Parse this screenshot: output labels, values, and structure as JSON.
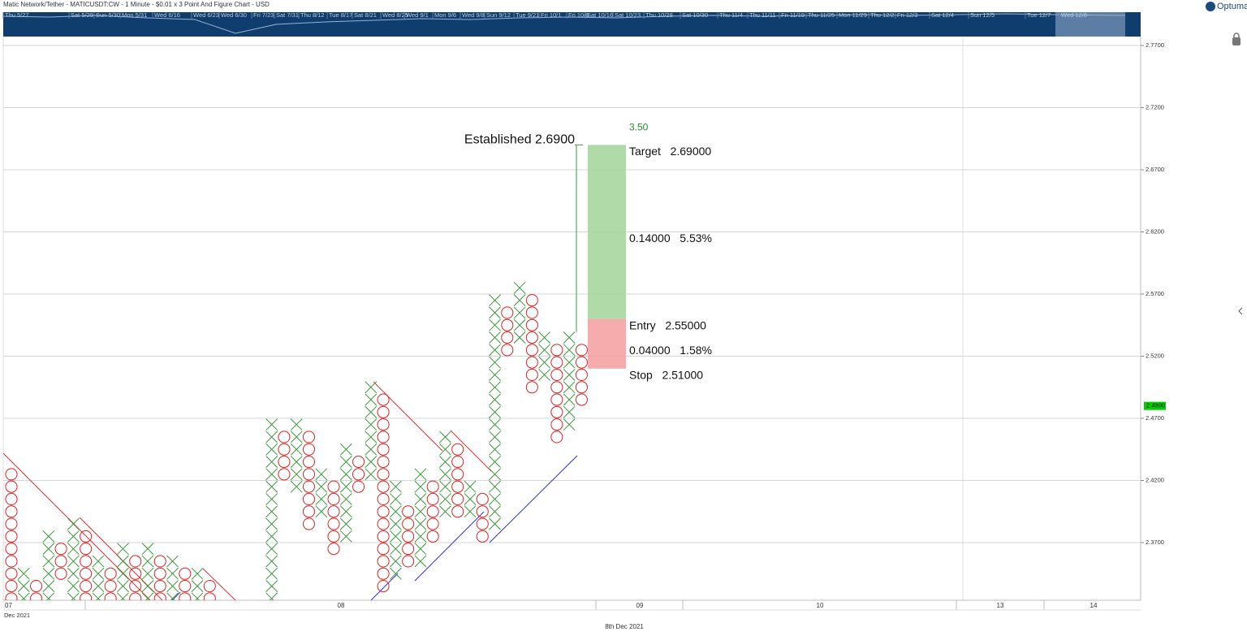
{
  "header": {
    "title": "Matic Network/Tether - MATICUSDT:CW - 1 Minute - $0.01 x 3 Point And Figure Chart - USD",
    "logo": "Optuma"
  },
  "navigator": {
    "labels": [
      "Thu 5/27",
      "Sat 5/29",
      "Sun 5/30",
      "Mon 5/31",
      "Wed 6/16",
      "Wed 6/23",
      "Wed 6/30",
      "Fri 7/23",
      "Sat 7/31",
      "Thu 8/12",
      "Tue 8/17",
      "Sat 8/21",
      "Wed 8/25",
      "Wed 9/1",
      "Mon 9/6",
      "Wed 9/8",
      "Sun 9/12",
      "Tue 9/21",
      "Fri 10/1",
      "Fri 10/8",
      "Sat 10/16",
      "Sat 10/23",
      "Thu 10/28",
      "Sat 10/30",
      "Thu 11/4",
      "Thu 11/11",
      "Fri 11/19",
      "Thu 11/25",
      "Mon 11/29",
      "Thu 12/2",
      "Fri 12/3",
      "Sat 12/4",
      "Sun 12/5",
      "Tue 12/7",
      "Wed 12/8"
    ]
  },
  "chart_data": {
    "type": "point-and-figure",
    "box_size": 0.01,
    "colors": {
      "X": "#3a9a3a",
      "O": "#e02424"
    },
    "x": [
      0,
      1,
      2,
      3,
      4,
      5,
      6,
      7,
      8,
      9,
      10,
      11,
      12,
      13,
      14,
      15,
      16,
      21,
      22,
      23,
      24,
      25,
      26,
      27,
      28,
      29,
      30,
      31,
      32,
      33,
      34,
      35,
      36,
      37,
      38,
      39,
      40,
      41,
      42,
      43,
      44,
      45,
      46
    ],
    "columns": [
      {
        "kind": "O",
        "high": 2.42,
        "low": 2.32
      },
      {
        "kind": "X",
        "high": 2.34,
        "low": 2.32
      },
      {
        "kind": "O",
        "high": 2.33,
        "low": 2.32
      },
      {
        "kind": "X",
        "high": 2.37,
        "low": 2.32
      },
      {
        "kind": "O",
        "high": 2.36,
        "low": 2.34
      },
      {
        "kind": "X",
        "high": 2.38,
        "low": 2.32
      },
      {
        "kind": "O",
        "high": 2.37,
        "low": 2.32
      },
      {
        "kind": "X",
        "high": 2.35,
        "low": 2.32
      },
      {
        "kind": "O",
        "high": 2.34,
        "low": 2.32
      },
      {
        "kind": "X",
        "high": 2.36,
        "low": 2.32
      },
      {
        "kind": "O",
        "high": 2.35,
        "low": 2.32
      },
      {
        "kind": "X",
        "high": 2.36,
        "low": 2.32
      },
      {
        "kind": "O",
        "high": 2.35,
        "low": 2.32
      },
      {
        "kind": "X",
        "high": 2.35,
        "low": 2.32
      },
      {
        "kind": "O",
        "high": 2.34,
        "low": 2.32
      },
      {
        "kind": "X",
        "high": 2.34,
        "low": 2.32
      },
      {
        "kind": "O",
        "high": 2.33,
        "low": 2.32
      },
      {
        "kind": "X",
        "high": 2.46,
        "low": 2.32
      },
      {
        "kind": "O",
        "high": 2.45,
        "low": 2.42
      },
      {
        "kind": "X",
        "high": 2.46,
        "low": 2.41
      },
      {
        "kind": "O",
        "high": 2.45,
        "low": 2.38
      },
      {
        "kind": "X",
        "high": 2.42,
        "low": 2.39
      },
      {
        "kind": "O",
        "high": 2.41,
        "low": 2.36
      },
      {
        "kind": "X",
        "high": 2.44,
        "low": 2.37
      },
      {
        "kind": "O",
        "high": 2.43,
        "low": 2.41
      },
      {
        "kind": "X",
        "high": 2.49,
        "low": 2.42
      },
      {
        "kind": "O",
        "high": 2.48,
        "low": 2.33
      },
      {
        "kind": "X",
        "high": 2.41,
        "low": 2.34
      },
      {
        "kind": "O",
        "high": 2.39,
        "low": 2.35
      },
      {
        "kind": "X",
        "high": 2.42,
        "low": 2.35
      },
      {
        "kind": "O",
        "high": 2.41,
        "low": 2.37
      },
      {
        "kind": "X",
        "high": 2.45,
        "low": 2.39
      },
      {
        "kind": "O",
        "high": 2.44,
        "low": 2.39
      },
      {
        "kind": "X",
        "high": 2.41,
        "low": 2.39
      },
      {
        "kind": "O",
        "high": 2.4,
        "low": 2.37
      },
      {
        "kind": "X",
        "high": 2.56,
        "low": 2.38
      },
      {
        "kind": "O",
        "high": 2.55,
        "low": 2.52
      },
      {
        "kind": "X",
        "high": 2.57,
        "low": 2.53
      },
      {
        "kind": "O",
        "high": 2.56,
        "low": 2.49
      },
      {
        "kind": "X",
        "high": 2.53,
        "low": 2.5
      },
      {
        "kind": "O",
        "high": 2.52,
        "low": 2.45
      },
      {
        "kind": "X",
        "high": 2.53,
        "low": 2.46
      },
      {
        "kind": "O",
        "high": 2.52,
        "low": 2.48
      }
    ],
    "ylim": [
      2.3236,
      2.7772
    ],
    "yticks": [
      {
        "value": 2.37,
        "label": "2.3700"
      },
      {
        "value": 2.42,
        "label": "2.4200"
      },
      {
        "value": 2.47,
        "label": "2.4700"
      },
      {
        "value": 2.52,
        "label": "2.5200"
      },
      {
        "value": 2.57,
        "label": "2.5700"
      },
      {
        "value": 2.62,
        "label": "2.6200"
      },
      {
        "value": 2.67,
        "label": "2.6700"
      },
      {
        "value": 2.72,
        "label": "2.7200"
      },
      {
        "value": 2.77,
        "label": "2.7700"
      }
    ],
    "grid": true,
    "last": {
      "value": 2.48,
      "label": "2.4800"
    },
    "trade": {
      "target": 2.69,
      "entry": 2.55,
      "stop": 2.51,
      "ratio_label": "3.50",
      "established_label": "Established 2.6900",
      "target_label": "Target   2.69000",
      "reward_label": "0.14000   5.53%",
      "entry_label": "Entry   2.55000",
      "risk_label": "0.04000   1.58%",
      "stop_label": "Stop   2.51000"
    },
    "x_axis": {
      "labels": [
        "07",
        "08",
        "09",
        "10",
        "13",
        "14"
      ],
      "month": "Dec 2021",
      "caption": "8th Dec 2021"
    }
  }
}
